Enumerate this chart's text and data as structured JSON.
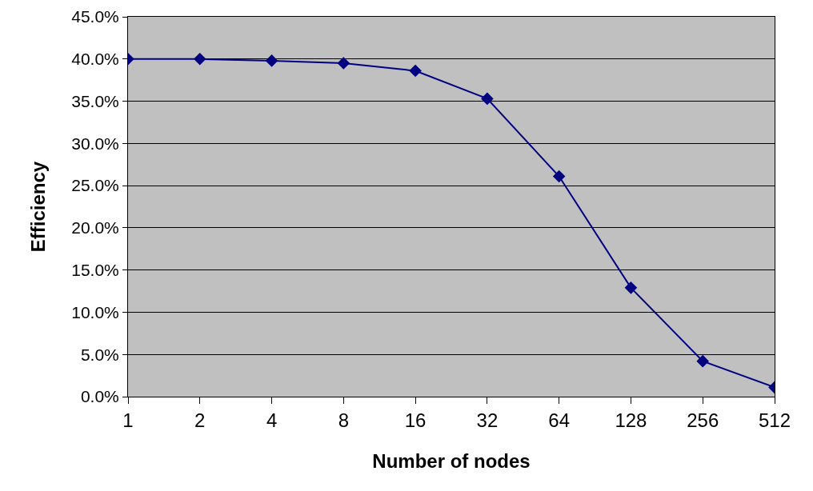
{
  "chart_data": {
    "type": "line",
    "xlabel": "Number of nodes",
    "ylabel": "Efficiency",
    "categories": [
      "1",
      "2",
      "4",
      "8",
      "16",
      "32",
      "64",
      "128",
      "256",
      "512"
    ],
    "series": [
      {
        "color": "#000080",
        "values": [
          40.0,
          40.0,
          39.8,
          39.5,
          38.6,
          35.3,
          26.1,
          12.9,
          4.2,
          1.1
        ]
      }
    ],
    "ylim": [
      0,
      45
    ],
    "yticks": [
      {
        "value": 0,
        "label": "0.0%"
      },
      {
        "value": 5,
        "label": "5.0%"
      },
      {
        "value": 10,
        "label": "10.0%"
      },
      {
        "value": 15,
        "label": "15.0%"
      },
      {
        "value": 20,
        "label": "20.0%"
      },
      {
        "value": 25,
        "label": "25.0%"
      },
      {
        "value": 30,
        "label": "30.0%"
      },
      {
        "value": 35,
        "label": "35.0%"
      },
      {
        "value": 40,
        "label": "40.0%"
      },
      {
        "value": 45,
        "label": "45.0%"
      }
    ],
    "grid": "y",
    "marker": "diamond",
    "line_style": "solid"
  }
}
